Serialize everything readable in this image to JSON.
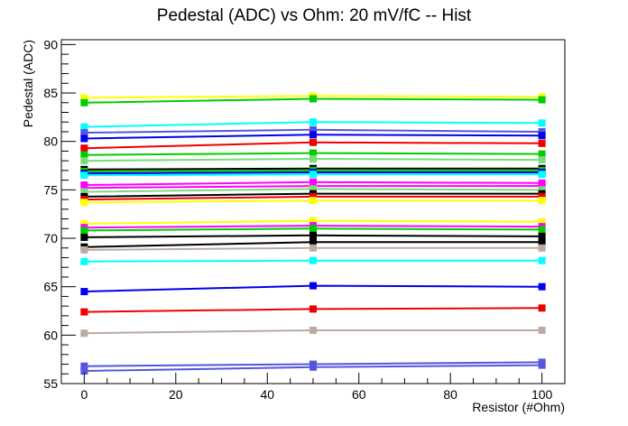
{
  "chart_data": {
    "type": "line",
    "title": "Pedestal (ADC) vs Ohm: 20 mV/fC -- Hist",
    "xlabel": "Resistor (#Ohm)",
    "ylabel": "Pedestal (ADC)",
    "xlim": [
      -5,
      105
    ],
    "ylim": [
      55,
      90.5
    ],
    "x_ticks": [
      0,
      20,
      40,
      60,
      80,
      100
    ],
    "y_ticks": [
      55,
      60,
      65,
      70,
      75,
      80,
      85,
      90
    ],
    "grid": false,
    "legend": "none",
    "x": [
      0,
      50,
      100
    ],
    "series": [
      {
        "color": "#ffff00",
        "values": [
          84.5,
          84.7,
          84.6
        ]
      },
      {
        "color": "#00cc00",
        "values": [
          84.0,
          84.4,
          84.3
        ]
      },
      {
        "color": "#00ffff",
        "values": [
          81.5,
          82.0,
          81.9
        ]
      },
      {
        "color": "#5555dd",
        "values": [
          80.9,
          81.2,
          81.0
        ]
      },
      {
        "color": "#0000ee",
        "values": [
          80.3,
          80.7,
          80.6
        ]
      },
      {
        "color": "#ee0000",
        "values": [
          79.3,
          79.9,
          79.8
        ]
      },
      {
        "color": "#00cc00",
        "values": [
          78.6,
          78.8,
          78.7
        ]
      },
      {
        "color": "#77dd77",
        "values": [
          78.0,
          78.2,
          78.1
        ]
      },
      {
        "color": "#000000",
        "values": [
          77.1,
          77.2,
          77.2
        ]
      },
      {
        "color": "#00cc00",
        "values": [
          76.9,
          77.0,
          77.0
        ]
      },
      {
        "color": "#0000ee",
        "values": [
          76.7,
          76.8,
          76.8
        ]
      },
      {
        "color": "#00ffff",
        "values": [
          76.5,
          76.6,
          76.6
        ]
      },
      {
        "color": "#ff00ff",
        "values": [
          75.5,
          75.8,
          75.7
        ]
      },
      {
        "color": "#ff00ff",
        "values": [
          75.2,
          75.4,
          75.4
        ]
      },
      {
        "color": "#77dd77",
        "values": [
          74.8,
          75.1,
          75.0
        ]
      },
      {
        "color": "#000000",
        "values": [
          74.3,
          74.6,
          74.6
        ]
      },
      {
        "color": "#ee0000",
        "values": [
          74.0,
          74.3,
          74.3
        ]
      },
      {
        "color": "#ffff00",
        "values": [
          73.7,
          73.9,
          73.9
        ]
      },
      {
        "color": "#ffff00",
        "values": [
          71.5,
          71.8,
          71.7
        ]
      },
      {
        "color": "#ff00ff",
        "values": [
          71.1,
          71.3,
          71.2
        ]
      },
      {
        "color": "#00cc00",
        "values": [
          70.8,
          71.0,
          70.9
        ]
      },
      {
        "color": "#000000",
        "values": [
          70.1,
          70.3,
          70.2
        ]
      },
      {
        "color": "#000000",
        "values": [
          69.1,
          69.6,
          69.6
        ]
      },
      {
        "color": "#bbaaa0",
        "values": [
          68.8,
          69.0,
          69.0
        ]
      },
      {
        "color": "#00ffff",
        "values": [
          67.6,
          67.7,
          67.7
        ]
      },
      {
        "color": "#0000ee",
        "values": [
          64.5,
          65.1,
          65.0
        ]
      },
      {
        "color": "#ee0000",
        "values": [
          62.4,
          62.7,
          62.8
        ]
      },
      {
        "color": "#bbaaa0",
        "values": [
          60.2,
          60.5,
          60.5
        ]
      },
      {
        "color": "#5555dd",
        "values": [
          56.8,
          57.0,
          57.2
        ]
      },
      {
        "color": "#5555dd",
        "values": [
          56.3,
          56.7,
          56.9
        ]
      }
    ]
  }
}
